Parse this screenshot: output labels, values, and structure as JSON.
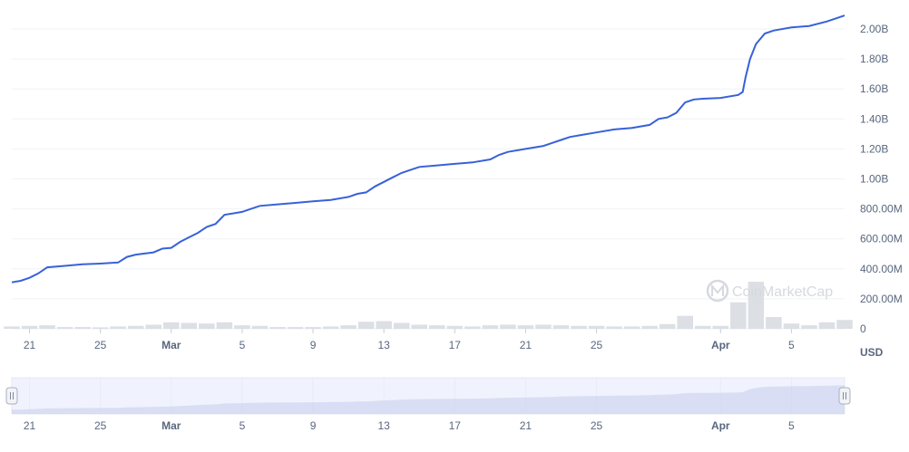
{
  "watermark": "CoinMarketCap",
  "chart_data": {
    "type": "line",
    "unit_label": "USD",
    "colors": {
      "line": "#3861d8",
      "grid": "#eff2f5",
      "volume": "#d6d9df",
      "navigator_fill": "#e4e9fb",
      "navigator_line": "#c9d1ee"
    },
    "y_ticks": [
      {
        "value": 0,
        "label": "0"
      },
      {
        "value": 200000000,
        "label": "200.00M"
      },
      {
        "value": 400000000,
        "label": "400.00M"
      },
      {
        "value": 600000000,
        "label": "600.00M"
      },
      {
        "value": 800000000,
        "label": "800.00M"
      },
      {
        "value": 1000000000,
        "label": "1.00B"
      },
      {
        "value": 1200000000,
        "label": "1.20B"
      },
      {
        "value": 1400000000,
        "label": "1.40B"
      },
      {
        "value": 1600000000,
        "label": "1.60B"
      },
      {
        "value": 1800000000,
        "label": "1.80B"
      },
      {
        "value": 2000000000,
        "label": "2.00B"
      }
    ],
    "ylim": [
      0,
      2000000000
    ],
    "xlim": [
      "2023-02-20",
      "2023-04-08"
    ],
    "x_ticks": [
      {
        "date": "2023-02-21",
        "label": "21",
        "bold": false
      },
      {
        "date": "2023-02-25",
        "label": "25",
        "bold": false
      },
      {
        "date": "2023-03-01",
        "label": "Mar",
        "bold": true
      },
      {
        "date": "2023-03-05",
        "label": "5",
        "bold": false
      },
      {
        "date": "2023-03-09",
        "label": "9",
        "bold": false
      },
      {
        "date": "2023-03-13",
        "label": "13",
        "bold": false
      },
      {
        "date": "2023-03-17",
        "label": "17",
        "bold": false
      },
      {
        "date": "2023-03-21",
        "label": "21",
        "bold": false
      },
      {
        "date": "2023-03-25",
        "label": "25",
        "bold": false
      },
      {
        "date": "2023-04-01",
        "label": "Apr",
        "bold": true
      },
      {
        "date": "2023-04-05",
        "label": "5",
        "bold": false
      }
    ],
    "series": [
      {
        "values": [
          [
            "2023-02-20",
            310000000
          ],
          [
            "2023-02-20T12:00",
            320000000
          ],
          [
            "2023-02-21",
            340000000
          ],
          [
            "2023-02-21T12:00",
            370000000
          ],
          [
            "2023-02-22",
            410000000
          ],
          [
            "2023-02-23",
            420000000
          ],
          [
            "2023-02-24",
            430000000
          ],
          [
            "2023-02-25",
            435000000
          ],
          [
            "2023-02-26",
            442000000
          ],
          [
            "2023-02-26T12:00",
            480000000
          ],
          [
            "2023-02-27",
            495000000
          ],
          [
            "2023-02-28",
            510000000
          ],
          [
            "2023-02-28T12:00",
            535000000
          ],
          [
            "2023-03-01",
            540000000
          ],
          [
            "2023-03-01T12:00",
            580000000
          ],
          [
            "2023-03-02",
            610000000
          ],
          [
            "2023-03-02T12:00",
            640000000
          ],
          [
            "2023-03-03",
            680000000
          ],
          [
            "2023-03-03T12:00",
            700000000
          ],
          [
            "2023-03-04",
            760000000
          ],
          [
            "2023-03-05",
            780000000
          ],
          [
            "2023-03-05T12:00",
            800000000
          ],
          [
            "2023-03-06",
            820000000
          ],
          [
            "2023-03-07",
            830000000
          ],
          [
            "2023-03-08",
            840000000
          ],
          [
            "2023-03-09",
            850000000
          ],
          [
            "2023-03-10",
            860000000
          ],
          [
            "2023-03-11",
            880000000
          ],
          [
            "2023-03-11T12:00",
            900000000
          ],
          [
            "2023-03-12",
            910000000
          ],
          [
            "2023-03-12T12:00",
            950000000
          ],
          [
            "2023-03-13",
            980000000
          ],
          [
            "2023-03-13T12:00",
            1010000000
          ],
          [
            "2023-03-14",
            1040000000
          ],
          [
            "2023-03-14T12:00",
            1060000000
          ],
          [
            "2023-03-15",
            1080000000
          ],
          [
            "2023-03-16",
            1090000000
          ],
          [
            "2023-03-17",
            1100000000
          ],
          [
            "2023-03-18",
            1110000000
          ],
          [
            "2023-03-19",
            1130000000
          ],
          [
            "2023-03-19T12:00",
            1160000000
          ],
          [
            "2023-03-20",
            1180000000
          ],
          [
            "2023-03-21",
            1200000000
          ],
          [
            "2023-03-22",
            1220000000
          ],
          [
            "2023-03-22T12:00",
            1240000000
          ],
          [
            "2023-03-23",
            1260000000
          ],
          [
            "2023-03-23T12:00",
            1280000000
          ],
          [
            "2023-03-24",
            1290000000
          ],
          [
            "2023-03-25",
            1310000000
          ],
          [
            "2023-03-26",
            1330000000
          ],
          [
            "2023-03-27",
            1340000000
          ],
          [
            "2023-03-28",
            1360000000
          ],
          [
            "2023-03-28T12:00",
            1400000000
          ],
          [
            "2023-03-29",
            1410000000
          ],
          [
            "2023-03-29T12:00",
            1440000000
          ],
          [
            "2023-03-30",
            1510000000
          ],
          [
            "2023-03-30T12:00",
            1530000000
          ],
          [
            "2023-03-31",
            1535000000
          ],
          [
            "2023-04-01",
            1540000000
          ],
          [
            "2023-04-02",
            1560000000
          ],
          [
            "2023-04-02T06:00",
            1580000000
          ],
          [
            "2023-04-02T10:00",
            1680000000
          ],
          [
            "2023-04-02T16:00",
            1800000000
          ],
          [
            "2023-04-03",
            1900000000
          ],
          [
            "2023-04-03T12:00",
            1970000000
          ],
          [
            "2023-04-04",
            1990000000
          ],
          [
            "2023-04-05",
            2010000000
          ],
          [
            "2023-04-06",
            2020000000
          ],
          [
            "2023-04-07",
            2050000000
          ],
          [
            "2023-04-07T12:00",
            2070000000
          ],
          [
            "2023-04-08",
            2090000000
          ]
        ]
      }
    ],
    "volume": [
      [
        "2023-02-20",
        8
      ],
      [
        "2023-02-21",
        10
      ],
      [
        "2023-02-22",
        12
      ],
      [
        "2023-02-23",
        6
      ],
      [
        "2023-02-24",
        6
      ],
      [
        "2023-02-25",
        5
      ],
      [
        "2023-02-26",
        8
      ],
      [
        "2023-02-27",
        10
      ],
      [
        "2023-02-28",
        14
      ],
      [
        "2023-03-01",
        22
      ],
      [
        "2023-03-02",
        20
      ],
      [
        "2023-03-03",
        18
      ],
      [
        "2023-03-04",
        22
      ],
      [
        "2023-03-05",
        12
      ],
      [
        "2023-03-06",
        10
      ],
      [
        "2023-03-07",
        6
      ],
      [
        "2023-03-08",
        6
      ],
      [
        "2023-03-09",
        6
      ],
      [
        "2023-03-10",
        8
      ],
      [
        "2023-03-11",
        12
      ],
      [
        "2023-03-12",
        24
      ],
      [
        "2023-03-13",
        26
      ],
      [
        "2023-03-14",
        20
      ],
      [
        "2023-03-15",
        14
      ],
      [
        "2023-03-16",
        12
      ],
      [
        "2023-03-17",
        10
      ],
      [
        "2023-03-18",
        8
      ],
      [
        "2023-03-19",
        12
      ],
      [
        "2023-03-20",
        14
      ],
      [
        "2023-03-21",
        12
      ],
      [
        "2023-03-22",
        14
      ],
      [
        "2023-03-23",
        12
      ],
      [
        "2023-03-24",
        10
      ],
      [
        "2023-03-25",
        10
      ],
      [
        "2023-03-26",
        8
      ],
      [
        "2023-03-27",
        8
      ],
      [
        "2023-03-28",
        10
      ],
      [
        "2023-03-29",
        16
      ],
      [
        "2023-03-30",
        44
      ],
      [
        "2023-03-31",
        10
      ],
      [
        "2023-04-01",
        10
      ],
      [
        "2023-04-02",
        90
      ],
      [
        "2023-04-03",
        160
      ],
      [
        "2023-04-04",
        40
      ],
      [
        "2023-04-05",
        18
      ],
      [
        "2023-04-06",
        12
      ],
      [
        "2023-04-07",
        22
      ],
      [
        "2023-04-08",
        30
      ]
    ]
  }
}
